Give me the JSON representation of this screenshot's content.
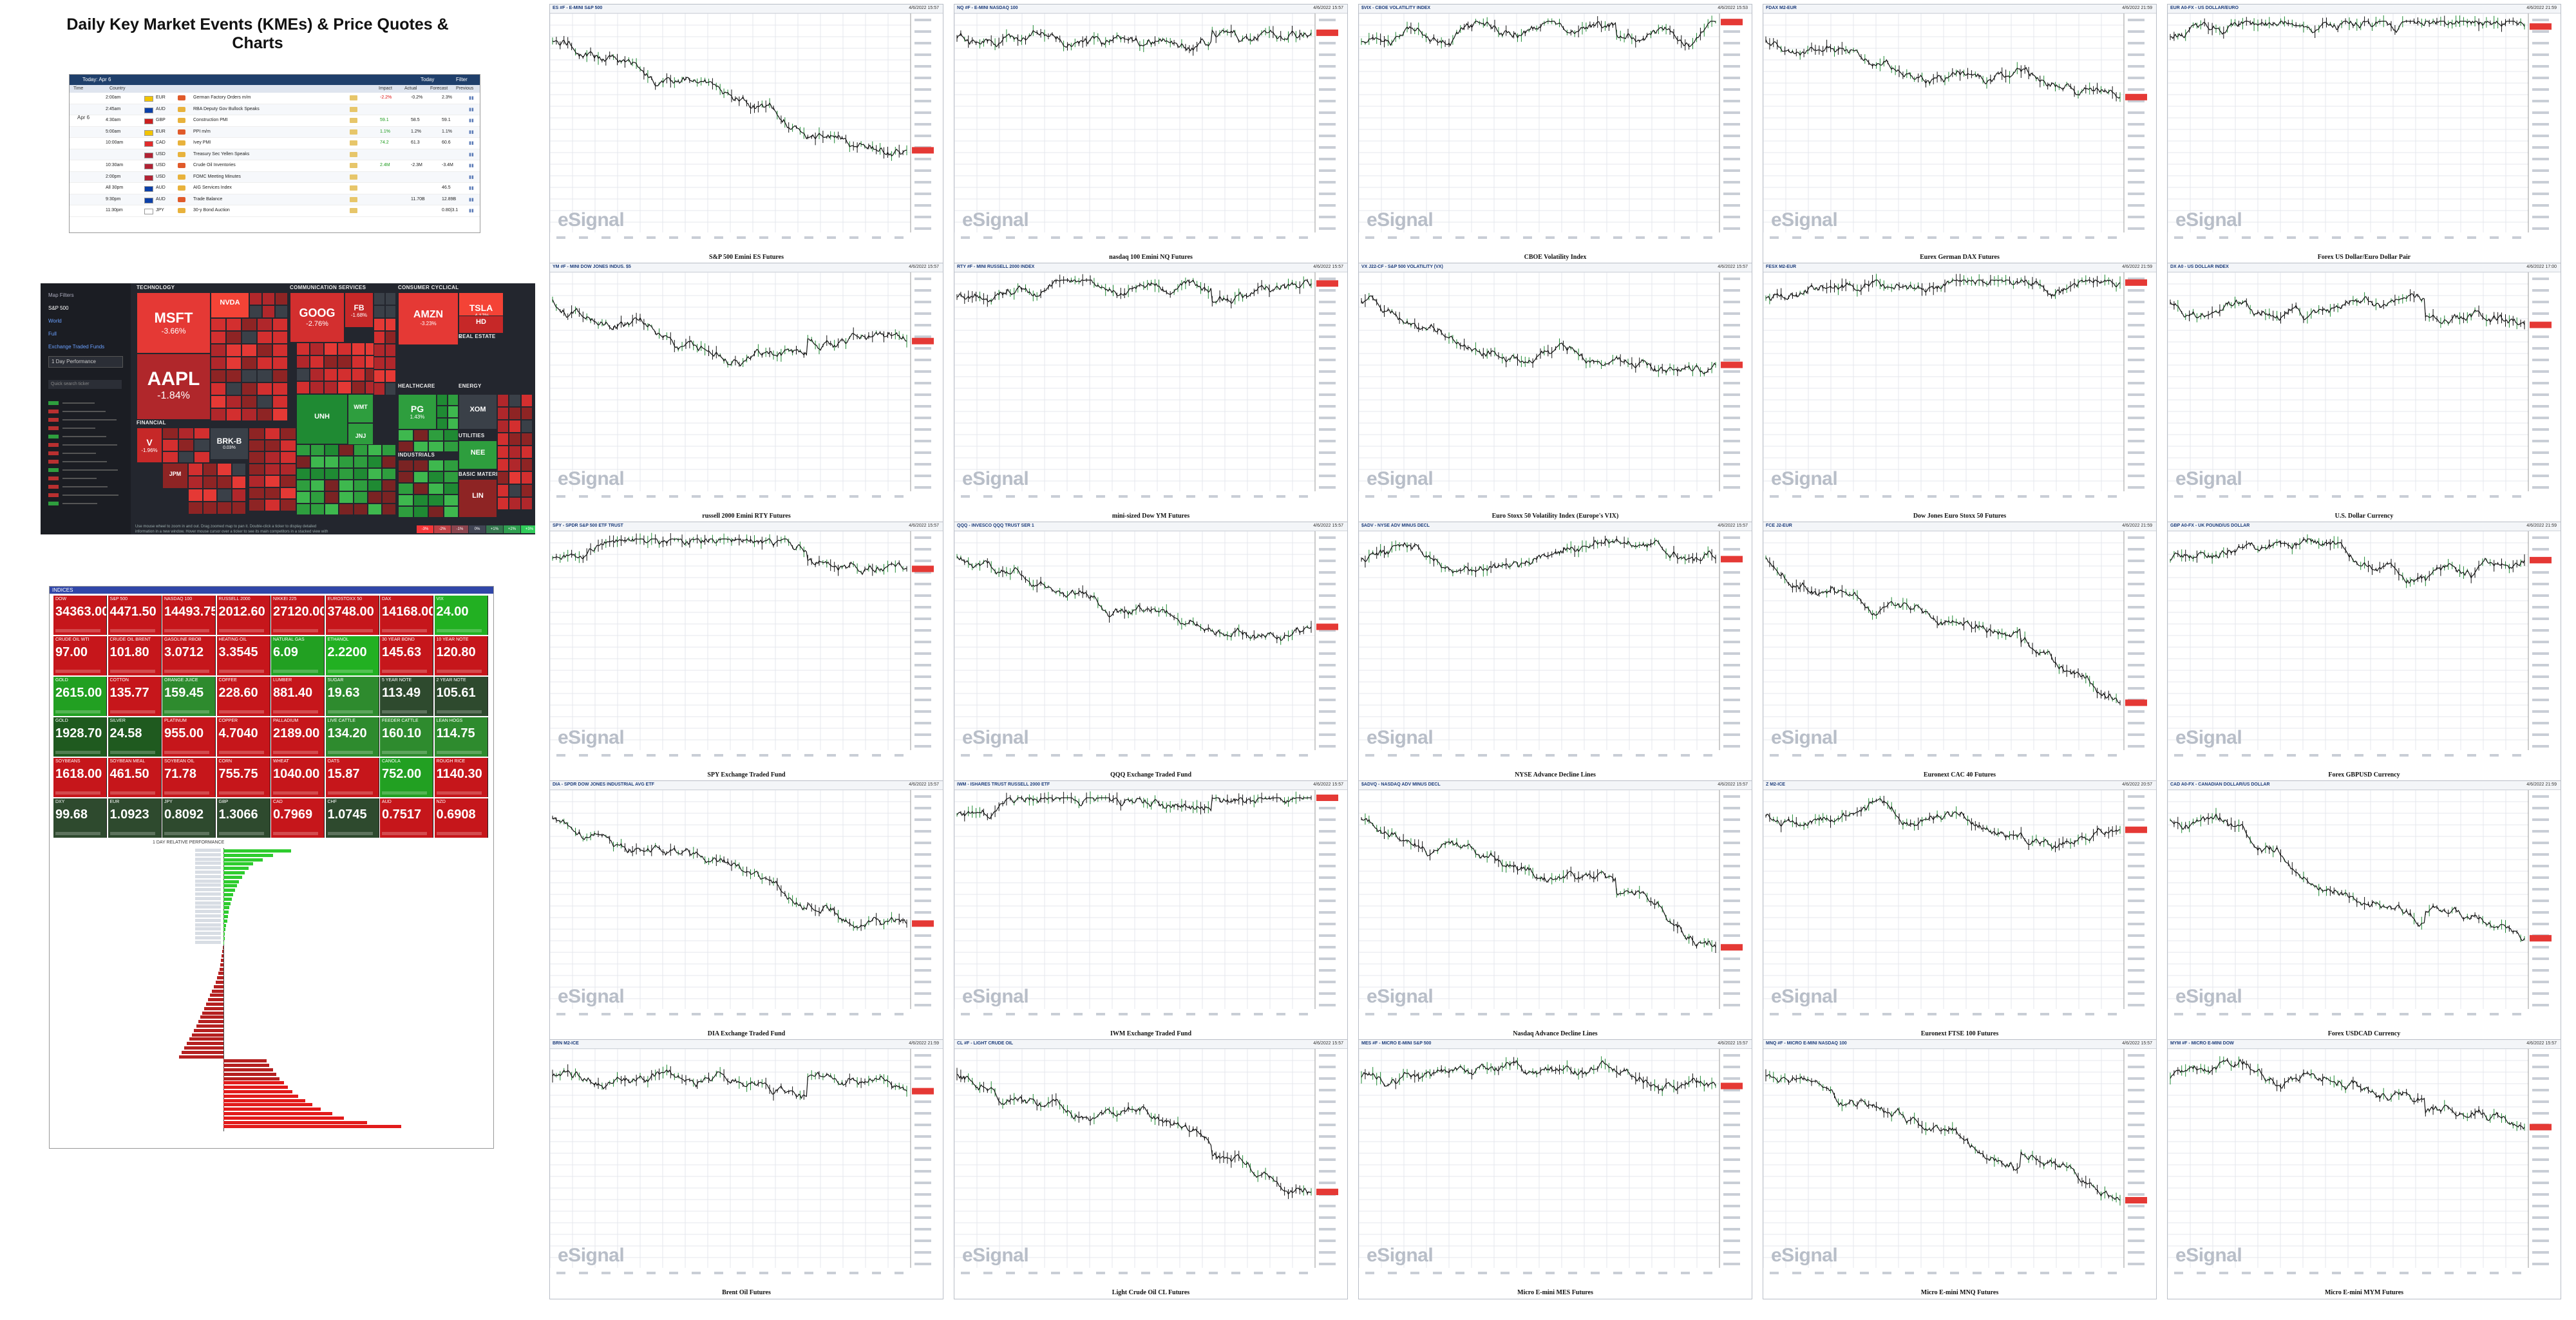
{
  "page_title": "Daily Key Market Events (KMEs) & Price Quotes & Charts",
  "calendar": {
    "header": {
      "day": "Today: Apr 6",
      "right1": "Today",
      "right2": "Filter"
    },
    "subheader": [
      "Time",
      "Country",
      "Impact",
      "Actual",
      "Forecast",
      "Previous",
      "Graph"
    ],
    "date_label": [
      "Wed",
      "Apr 6"
    ],
    "rows": [
      {
        "time": "2:00am",
        "cur": "EUR",
        "event": "German Factory Orders m/m",
        "actual": "-2.2%",
        "forecast": "-0.2%",
        "previous": "2.3%",
        "flag": "#f2c400"
      },
      {
        "time": "2:45am",
        "cur": "AUD",
        "event": "RBA Deputy Gov Bullock Speaks",
        "actual": "",
        "forecast": "",
        "previous": "",
        "flag": "#0b3fa8"
      },
      {
        "time": "4:30am",
        "cur": "GBP",
        "event": "Construction PMI",
        "actual": "59.1",
        "forecast": "58.5",
        "previous": "59.1",
        "flag": "#cc1e1e"
      },
      {
        "time": "5:00am",
        "cur": "EUR",
        "event": "PPI m/m",
        "actual": "1.1%",
        "forecast": "1.2%",
        "previous": "1.1%",
        "flag": "#f2c400"
      },
      {
        "time": "10:00am",
        "cur": "CAD",
        "event": "Ivey PMI",
        "actual": "74.2",
        "forecast": "61.3",
        "previous": "60.6",
        "flag": "#e12b2b"
      },
      {
        "time": "",
        "cur": "USD",
        "event": "Treasury Sec Yellen Speaks",
        "actual": "",
        "forecast": "",
        "previous": "",
        "flag": "#b22234"
      },
      {
        "time": "10:30am",
        "cur": "USD",
        "event": "Crude Oil Inventories",
        "actual": "2.4M",
        "forecast": "-2.3M",
        "previous": "-3.4M",
        "flag": "#b22234"
      },
      {
        "time": "2:00pm",
        "cur": "USD",
        "event": "FOMC Meeting Minutes",
        "actual": "",
        "forecast": "",
        "previous": "",
        "flag": "#b22234"
      },
      {
        "time": "All 30pm",
        "cur": "AUD",
        "event": "AIG Services Index",
        "actual": "",
        "forecast": "",
        "previous": "46.5",
        "flag": "#0b3fa8"
      },
      {
        "time": "9:30pm",
        "cur": "AUD",
        "event": "Trade Balance",
        "actual": "",
        "forecast": "11.70B",
        "previous": "12.89B",
        "flag": "#0b3fa8"
      },
      {
        "time": "11:30pm",
        "cur": "JPY",
        "event": "30-y Bond Auction",
        "actual": "",
        "forecast": "",
        "previous": "0.80|3.1",
        "flag": "#ffffff"
      }
    ]
  },
  "heatmap": {
    "side": {
      "title": "Map Filters",
      "items": [
        "S&P 500",
        "World",
        "Full",
        "Exchange Traded Funds"
      ],
      "select": "1 Day Performance",
      "search": "Quick search ticker"
    },
    "sectors": [
      "TECHNOLOGY",
      "COMMUNICATION SERVICES",
      "CONSUMER CYCLICAL",
      "REAL ESTATE",
      "CONSUMER DEFENSIVE",
      "HEALTHCARE",
      "FINANCIAL",
      "INDUSTRIALS",
      "ENERGY",
      "UTILITIES",
      "BASIC MATERIALS"
    ],
    "tiles": [
      {
        "tk": "MSFT",
        "pc": "-3.66%",
        "color": "#e53935"
      },
      {
        "tk": "AAPL",
        "pc": "-1.84%",
        "color": "#b0272b"
      },
      {
        "tk": "GOOG",
        "pc": "-2.76%",
        "color": "#d32f2f"
      },
      {
        "tk": "FB",
        "pc": "-1.68%",
        "color": "#c62828"
      },
      {
        "tk": "AMZN",
        "pc": "-3.23%",
        "color": "#e53935"
      },
      {
        "tk": "TSLA",
        "pc": "-4.17%",
        "color": "#f44336"
      },
      {
        "tk": "HD",
        "pc": "",
        "color": "#c62828"
      },
      {
        "tk": "NVDA",
        "pc": "",
        "color": "#f44336"
      },
      {
        "tk": "V",
        "pc": "-1.96%",
        "color": "#c62828"
      },
      {
        "tk": "BRK-B",
        "pc": "0.03%",
        "color": "#3a4048"
      },
      {
        "tk": "JPM",
        "pc": "",
        "color": "#8e2424"
      },
      {
        "tk": "PG",
        "pc": "1.43%",
        "color": "#2e9e3e"
      },
      {
        "tk": "WMT",
        "pc": "",
        "color": "#2e9e3e"
      },
      {
        "tk": "JNJ",
        "pc": "",
        "color": "#2e9e3e"
      },
      {
        "tk": "UNH",
        "pc": "",
        "color": "#1f8a33"
      },
      {
        "tk": "XOM",
        "pc": "",
        "color": "#3a4048"
      },
      {
        "tk": "NEE",
        "pc": "",
        "color": "#2e9e3e"
      },
      {
        "tk": "LIN",
        "pc": "",
        "color": "#8e2424"
      }
    ],
    "legend": [
      "-3%",
      "-2%",
      "-1%",
      "0%",
      "+1%",
      "+2%",
      "+3%"
    ],
    "note": "Use mouse wheel to zoom in and out. Drag zoomed map to pan it. Double-click a ticker to display detailed information in a new window. Hover mouse cursor over a ticker to see its main competitors in a stacked view with a 3-month history graph."
  },
  "quoteboard": {
    "title": "INDICES",
    "rows": [
      [
        {
          "n": "DOW",
          "v": "34363.00",
          "c": "#c6161b"
        },
        {
          "n": "S&P 500",
          "v": "4471.50",
          "c": "#c6161b"
        },
        {
          "n": "NASDAQ 100",
          "v": "14493.75",
          "c": "#c6161b"
        },
        {
          "n": "RUSSELL 2000",
          "v": "2012.60",
          "c": "#c6161b"
        },
        {
          "n": "NIKKEI 225",
          "v": "27120.00",
          "c": "#c6161b"
        },
        {
          "n": "EUROSTOXX 50",
          "v": "3748.00",
          "c": "#c6161b"
        },
        {
          "n": "DAX",
          "v": "14168.00",
          "c": "#c6161b"
        },
        {
          "n": "VIX",
          "v": "24.00",
          "c": "#22b022"
        }
      ],
      [
        {
          "n": "CRUDE OIL WTI",
          "v": "97.00",
          "c": "#c6161b"
        },
        {
          "n": "CRUDE OIL BRENT",
          "v": "101.80",
          "c": "#c6161b"
        },
        {
          "n": "GASOLINE RBOB",
          "v": "3.0712",
          "c": "#c6161b"
        },
        {
          "n": "HEATING OIL",
          "v": "3.3545",
          "c": "#c6161b"
        },
        {
          "n": "NATURAL GAS",
          "v": "6.09",
          "c": "#22a022"
        },
        {
          "n": "ETHANOL",
          "v": "2.2200",
          "c": "#22b022"
        },
        {
          "n": "30 YEAR BOND",
          "v": "145.63",
          "c": "#c6161b"
        },
        {
          "n": "10 YEAR NOTE",
          "v": "120.80",
          "c": "#c6161b"
        }
      ],
      [
        {
          "n": "GOLD",
          "v": "2615.00",
          "c": "#22a022"
        },
        {
          "n": "COTTON",
          "v": "135.77",
          "c": "#c6161b"
        },
        {
          "n": "ORANGE JUICE",
          "v": "159.45",
          "c": "#2e8b2e"
        },
        {
          "n": "COFFEE",
          "v": "228.60",
          "c": "#c6161b"
        },
        {
          "n": "LUMBER",
          "v": "881.40",
          "c": "#c6161b"
        },
        {
          "n": "SUGAR",
          "v": "19.63",
          "c": "#2e8b2e"
        },
        {
          "n": "5 YEAR NOTE",
          "v": "113.49",
          "c": "#2e4a2e"
        },
        {
          "n": "2 YEAR NOTE",
          "v": "105.61",
          "c": "#2e4a2e"
        }
      ],
      [
        {
          "n": "GOLD",
          "v": "1928.70",
          "c": "#1f5a1f"
        },
        {
          "n": "SILVER",
          "v": "24.58",
          "c": "#1f5a1f"
        },
        {
          "n": "PLATINUM",
          "v": "955.00",
          "c": "#c6161b"
        },
        {
          "n": "COPPER",
          "v": "4.7040",
          "c": "#c6161b"
        },
        {
          "n": "PALLADIUM",
          "v": "2189.00",
          "c": "#c6161b"
        },
        {
          "n": "LIVE CATTLE",
          "v": "134.20",
          "c": "#2e8b2e"
        },
        {
          "n": "FEEDER CATTLE",
          "v": "160.10",
          "c": "#2e8b2e"
        },
        {
          "n": "LEAN HOGS",
          "v": "114.75",
          "c": "#2e8b2e"
        }
      ],
      [
        {
          "n": "SOYBEANS",
          "v": "1618.00",
          "c": "#c6161b"
        },
        {
          "n": "SOYBEAN MEAL",
          "v": "461.50",
          "c": "#c6161b"
        },
        {
          "n": "SOYBEAN OIL",
          "v": "71.78",
          "c": "#c6161b"
        },
        {
          "n": "CORN",
          "v": "755.75",
          "c": "#c6161b"
        },
        {
          "n": "WHEAT",
          "v": "1040.00",
          "c": "#c6161b"
        },
        {
          "n": "OATS",
          "v": "15.87",
          "c": "#c6161b"
        },
        {
          "n": "CANOLA",
          "v": "752.00",
          "c": "#22a022"
        },
        {
          "n": "ROUGH RICE",
          "v": "1140.30",
          "c": "#c6161b"
        }
      ],
      [
        {
          "n": "DXY",
          "v": "99.68",
          "c": "#2e4a2e"
        },
        {
          "n": "EUR",
          "v": "1.0923",
          "c": "#2e4a2e"
        },
        {
          "n": "JPY",
          "v": "0.8092",
          "c": "#2e4a2e"
        },
        {
          "n": "GBP",
          "v": "1.3066",
          "c": "#2e4a2e"
        },
        {
          "n": "CAD",
          "v": "0.7969",
          "c": "#c6161b"
        },
        {
          "n": "CHF",
          "v": "1.0745",
          "c": "#2e4a2e"
        },
        {
          "n": "AUD",
          "v": "0.7517",
          "c": "#c6161b"
        },
        {
          "n": "NZD",
          "v": "0.6908",
          "c": "#c6161b"
        }
      ]
    ],
    "perf_title": "1 DAY RELATIVE PERFORMANCE",
    "perf_green": [
      0.95,
      0.7,
      0.55,
      0.42,
      0.35,
      0.3,
      0.26,
      0.22,
      0.19,
      0.16,
      0.14,
      0.12,
      0.1,
      0.08,
      0.07,
      0.06,
      0.05,
      0.04,
      0.03,
      0.02,
      0.015,
      0.01
    ],
    "perf_red": [
      0.01,
      0.02,
      0.03,
      0.04,
      0.05,
      0.06,
      0.08,
      0.1,
      0.12,
      0.15,
      0.18,
      0.21,
      0.24,
      0.27,
      0.3,
      0.33,
      0.36,
      0.39,
      0.42,
      0.46,
      0.5,
      0.54,
      0.58,
      0.62,
      0.66,
      0.7,
      0.75,
      0.8,
      0.86,
      0.92,
      0.98,
      1.05,
      1.12,
      1.2,
      1.3,
      1.42,
      1.55,
      1.7,
      1.9,
      2.1,
      2.5,
      3.1
    ]
  },
  "charts": [
    {
      "sym": "ES #F - E-MINI S&P 500",
      "date": "4/6/2022 15:57",
      "caption": "S&P 500 Emini ES Futures",
      "seed": 3
    },
    {
      "sym": "NQ #F - E-MINI NASDAQ 100",
      "date": "4/6/2022 15:57",
      "caption": "nasdaq 100 Emini NQ Futures",
      "seed": 5
    },
    {
      "sym": "$VIX - CBOE VOLATILITY INDEX",
      "date": "4/6/2022 15:53",
      "caption": "CBOE Volatility Index",
      "seed": 7
    },
    {
      "sym": "FDAX M2-EUR",
      "date": "4/6/2022 21:59",
      "caption": "Eurex German DAX Futures",
      "seed": 9
    },
    {
      "sym": "EUR A0-FX - US DOLLAR/EURO",
      "date": "4/6/2022 21:59",
      "caption": "Forex US Dollar/Euro Dollar Pair",
      "seed": 11
    },
    {
      "sym": "YM #F - MINI DOW JONES INDUS. $5",
      "date": "4/6/2022 15:57",
      "caption": "russell 2000 Emini RTY Futures",
      "seed": 13
    },
    {
      "sym": "RTY #F - MINI RUSSELL 2000 INDEX",
      "date": "4/6/2022 15:57",
      "caption": "mini-sized Dow YM Futures",
      "seed": 15
    },
    {
      "sym": "VX J22-CF - S&P 500 VOLATILITY (VX)",
      "date": "4/6/2022 15:57",
      "caption": "Euro Stoxx 50 Volatility Index (Europe's VIX)",
      "seed": 17
    },
    {
      "sym": "FESX M2-EUR",
      "date": "4/6/2022 21:59",
      "caption": "Dow Jones Euro Stoxx 50 Futures",
      "seed": 19
    },
    {
      "sym": "DX A0 - US DOLLAR INDEX",
      "date": "4/6/2022 17:00",
      "caption": "U.S. Dollar Currency",
      "seed": 21
    },
    {
      "sym": "SPY - SPDR S&P 500 ETF TRUST",
      "date": "4/6/2022 15:57",
      "caption": "SPY Exchange Traded Fund",
      "seed": 23
    },
    {
      "sym": "QQQ - INVESCO QQQ TRUST SER 1",
      "date": "4/6/2022 15:57",
      "caption": "QQQ Exchange Traded Fund",
      "seed": 25
    },
    {
      "sym": "$ADV - NYSE ADV MINUS DECL",
      "date": "4/6/2022 15:57",
      "caption": "NYSE Advance Decline Lines",
      "seed": 27
    },
    {
      "sym": "FCE J2-EUR",
      "date": "4/6/2022 21:59",
      "caption": "Euronext CAC 40 Futures",
      "seed": 29
    },
    {
      "sym": "GBP A0-FX - UK POUND/US DOLLAR",
      "date": "4/6/2022 21:59",
      "caption": "Forex GBPUSD Currency",
      "seed": 31
    },
    {
      "sym": "DIA - SPDR DOW JONES INDUSTRIAL AVG ETF",
      "date": "4/6/2022 15:57",
      "caption": "DIA Exchange Traded Fund",
      "seed": 33
    },
    {
      "sym": "IWM - ISHARES TRUST RUSSELL 2000 ETF",
      "date": "4/6/2022 15:57",
      "caption": "IWM Exchange Traded Fund",
      "seed": 35
    },
    {
      "sym": "$ADVQ - NASDAQ ADV MINUS DECL",
      "date": "4/6/2022 15:57",
      "caption": "Nasdaq Advance Decline Lines",
      "seed": 37
    },
    {
      "sym": "Z M2-ICE",
      "date": "4/6/2022 20:57",
      "caption": "Euronext FTSE 100 Futures",
      "seed": 39
    },
    {
      "sym": "CAD A0-FX - CANADIAN DOLLAR/US DOLLAR",
      "date": "4/6/2022 21:59",
      "caption": "Forex USDCAD Currency",
      "seed": 41
    },
    {
      "sym": "BRN M2-ICE",
      "date": "4/6/2022 21:59",
      "caption": "Brent Oil Futures",
      "seed": 43
    },
    {
      "sym": "CL #F - LIGHT CRUDE OIL",
      "date": "4/6/2022 15:57",
      "caption": "Light Crude Oil CL Futures",
      "seed": 45
    },
    {
      "sym": "MES #F - MICRO E-MINI S&P 500",
      "date": "4/6/2022 15:57",
      "caption": "Micro E-mini MES Futures",
      "seed": 47
    },
    {
      "sym": "MNQ #F - MICRO E-MINI NASDAQ 100",
      "date": "4/6/2022 15:57",
      "caption": "Micro E-mini MNQ Futures",
      "seed": 49
    },
    {
      "sym": "MYM #F - MICRO E-MINI DOW",
      "date": "4/6/2022 15:57",
      "caption": "Micro E-mini MYM Futures",
      "seed": 51
    }
  ],
  "watermark": "eSignal"
}
